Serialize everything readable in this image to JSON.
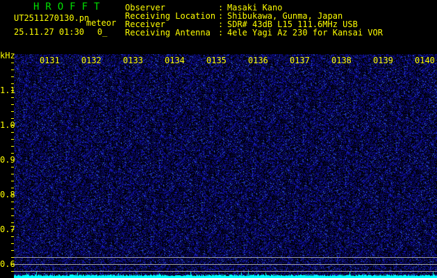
{
  "header": {
    "app_title": "HROFFT",
    "filename": "UT2511270130.pn",
    "datetime": "25.11.27 01:30",
    "mode": "meteor",
    "count": "0_",
    "fields": [
      {
        "label": "Observer",
        "value": "Masaki Kano"
      },
      {
        "label": "Receiving Location",
        "value": "Shibukawa, Gunma, Japan"
      },
      {
        "label": "Receiver",
        "value": "SDR# 43dB L15 111.6MHz USB"
      },
      {
        "label": "Receiving Antenna",
        "value": "4ele Yagi Az 230 for Kansai VOR"
      }
    ]
  },
  "spectrogram": {
    "y_unit": "kHz",
    "y_ticks": [
      "1.1",
      "1.0",
      "0.9",
      "0.8",
      "0.7",
      "0.6"
    ],
    "time_labels": [
      "0131",
      "0132",
      "0133",
      "0134",
      "0135",
      "0136",
      "0137",
      "0138",
      "0139",
      "0140"
    ],
    "colors": {
      "background": "#000010",
      "noise": "#1a1ab0",
      "spectrum": "#00ffff",
      "text": "#ffff00",
      "title": "#00e000"
    }
  }
}
